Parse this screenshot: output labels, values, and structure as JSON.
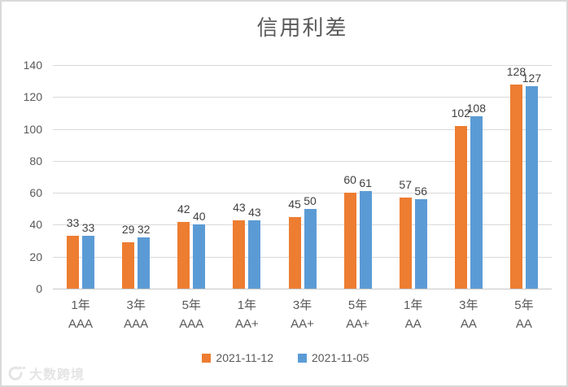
{
  "frame": {
    "background": "#ffffff",
    "border_color": "#d9d9d9"
  },
  "chart_data": {
    "type": "bar",
    "title": "信用利差",
    "title_color": "#595959",
    "categories": [
      {
        "term": "1年",
        "rating": "AAA"
      },
      {
        "term": "3年",
        "rating": "AAA"
      },
      {
        "term": "5年",
        "rating": "AAA"
      },
      {
        "term": "1年",
        "rating": "AA+"
      },
      {
        "term": "3年",
        "rating": "AA+"
      },
      {
        "term": "5年",
        "rating": "AA+"
      },
      {
        "term": "1年",
        "rating": "AA"
      },
      {
        "term": "3年",
        "rating": "AA"
      },
      {
        "term": "5年",
        "rating": "AA"
      }
    ],
    "series": [
      {
        "name": "2021-11-12",
        "color": "#ED7D31",
        "values": [
          33,
          29,
          42,
          43,
          45,
          60,
          57,
          102,
          128
        ]
      },
      {
        "name": "2021-11-05",
        "color": "#5B9BD5",
        "values": [
          33,
          32,
          40,
          43,
          50,
          61,
          56,
          108,
          127
        ]
      }
    ],
    "ylim": [
      0,
      140
    ],
    "yticks": [
      0,
      20,
      40,
      60,
      80,
      100,
      120,
      140
    ],
    "grid": true,
    "gridline_color": "#d9d9d9",
    "axis_label_color": "#595959",
    "data_label_color": "#404040",
    "legend_position": "bottom"
  },
  "watermark": {
    "text": "大数跨境"
  }
}
